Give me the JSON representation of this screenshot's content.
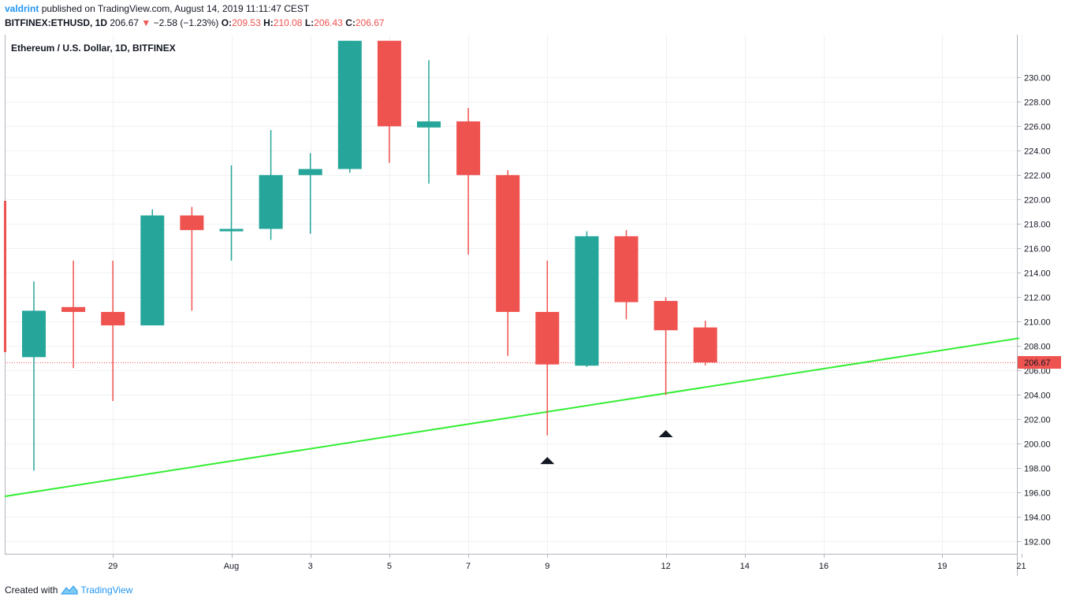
{
  "header": {
    "author": "valdrint",
    "published": "published on TradingView.com, August 14, 2019 11:11:47 CEST",
    "symbol": "BITFINEX:ETHUSD, 1D",
    "last": "206.67",
    "change": "−2.58 (−1.23%)",
    "o_label": "O:",
    "o": "209.53",
    "h_label": "H:",
    "h": "210.08",
    "l_label": "L:",
    "l": "206.43",
    "c_label": "C:",
    "c": "206.67"
  },
  "footer": {
    "created_with": "Created with",
    "brand": "TradingView"
  },
  "colors": {
    "up": "#26a69a",
    "down": "#ef5350",
    "trendline": "#33ee33",
    "grid": "#eef1f4",
    "axis": "#131722"
  },
  "icons": [
    "triangle-down-icon",
    "tradingview-logo-icon",
    "arrow-up-marker-icon"
  ],
  "chart_data": {
    "type": "candlestick",
    "legend": "Ethereum / U.S. Dollar, 1D, BITFINEX",
    "last_price_label": "206.67",
    "last_price": 206.67,
    "ylim": [
      191,
      233.5
    ],
    "y_ticks": [
      192,
      194,
      196,
      198,
      200,
      202,
      204,
      206,
      208,
      210,
      212,
      214,
      216,
      218,
      220,
      222,
      224,
      226,
      228,
      230
    ],
    "x_ticks": [
      {
        "day": 2,
        "label": "29"
      },
      {
        "day": 5,
        "label": "Aug"
      },
      {
        "day": 7,
        "label": "3"
      },
      {
        "day": 9,
        "label": "5"
      },
      {
        "day": 11,
        "label": "7"
      },
      {
        "day": 13,
        "label": "9"
      },
      {
        "day": 16,
        "label": "12"
      },
      {
        "day": 18,
        "label": "14"
      },
      {
        "day": 20,
        "label": "16"
      },
      {
        "day": 23,
        "label": "19"
      },
      {
        "day": 25,
        "label": "21"
      }
    ],
    "candles": [
      {
        "day": 0,
        "open": 207.1,
        "high": 213.3,
        "low": 197.8,
        "close": 210.9
      },
      {
        "day": 1,
        "open": 211.2,
        "high": 215.0,
        "low": 206.2,
        "close": 210.8
      },
      {
        "day": 2,
        "open": 210.8,
        "high": 215.0,
        "low": 203.5,
        "close": 209.7
      },
      {
        "day": 3,
        "open": 209.7,
        "high": 219.2,
        "low": 209.7,
        "close": 218.7
      },
      {
        "day": 4,
        "open": 218.7,
        "high": 219.4,
        "low": 210.9,
        "close": 217.5
      },
      {
        "day": 5,
        "open": 217.4,
        "high": 222.8,
        "low": 215.0,
        "close": 217.6
      },
      {
        "day": 6,
        "open": 217.6,
        "high": 225.7,
        "low": 216.7,
        "close": 222.0
      },
      {
        "day": 7,
        "open": 222.0,
        "high": 223.8,
        "low": 217.2,
        "close": 222.5
      },
      {
        "day": 8,
        "open": 222.5,
        "high": 233.0,
        "low": 222.2,
        "close": 233.0
      },
      {
        "day": 9,
        "open": 233.0,
        "high": 233.0,
        "low": 223.0,
        "close": 226.0
      },
      {
        "day": 10,
        "open": 225.9,
        "high": 231.4,
        "low": 221.3,
        "close": 226.4
      },
      {
        "day": 11,
        "open": 226.4,
        "high": 227.5,
        "low": 215.5,
        "close": 222.0
      },
      {
        "day": 12,
        "open": 222.0,
        "high": 222.4,
        "low": 207.2,
        "close": 210.8
      },
      {
        "day": 13,
        "open": 210.8,
        "high": 215.0,
        "low": 200.7,
        "close": 206.5
      },
      {
        "day": 14,
        "open": 206.4,
        "high": 217.4,
        "low": 206.3,
        "close": 217.0
      },
      {
        "day": 15,
        "open": 217.0,
        "high": 217.5,
        "low": 210.2,
        "close": 211.6
      },
      {
        "day": 16,
        "open": 211.7,
        "high": 212.0,
        "low": 204.0,
        "close": 209.3
      },
      {
        "day": 17,
        "open": 209.53,
        "high": 210.08,
        "low": 206.43,
        "close": 206.67
      }
    ],
    "trendline": [
      {
        "day": -0.74,
        "price": 195.7
      },
      {
        "day": 24.95,
        "price": 208.65
      }
    ],
    "markers": [
      {
        "day": 13,
        "price": 198.6
      },
      {
        "day": 16,
        "price": 200.8
      }
    ]
  }
}
